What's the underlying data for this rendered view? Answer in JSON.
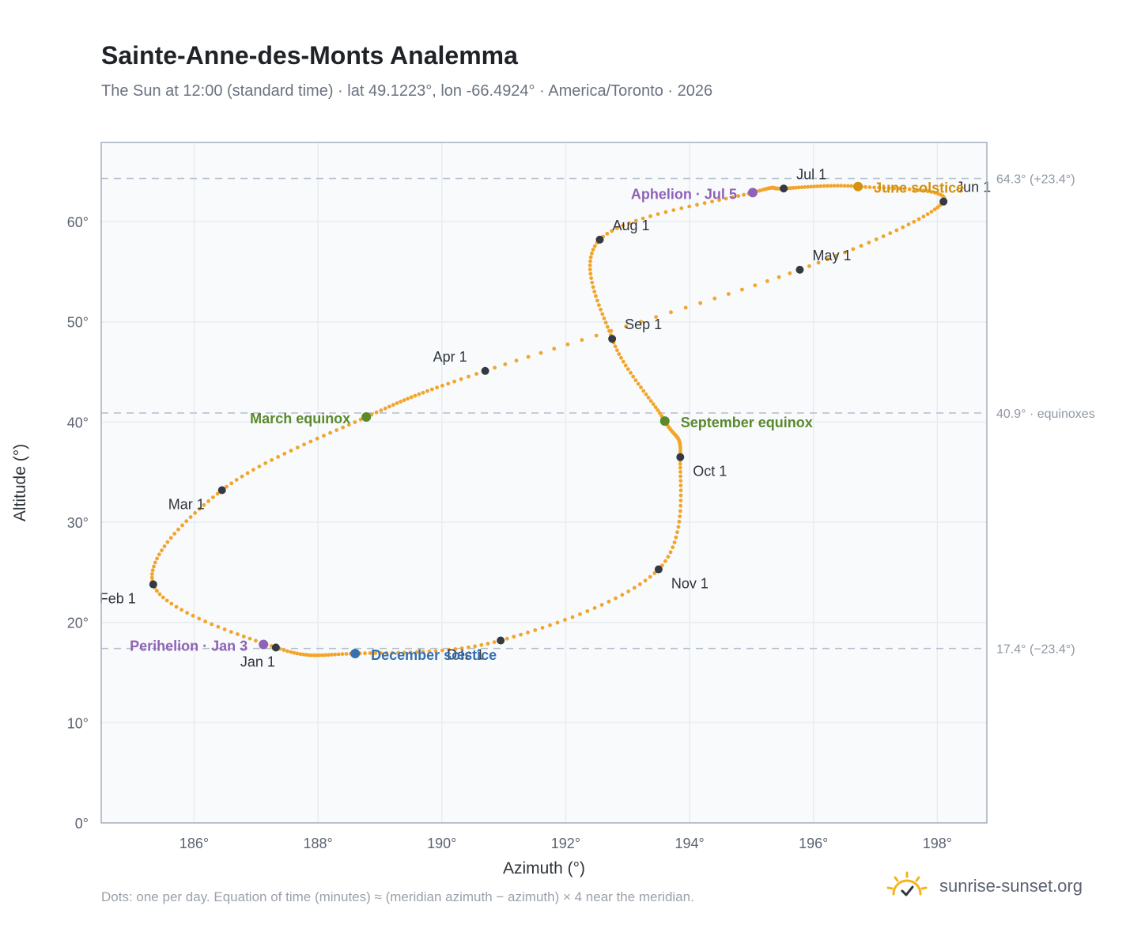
{
  "header": {
    "title": "Sainte-Anne-des-Monts Analemma",
    "subtitle": "The Sun at 12:00 (standard time) · lat 49.1223°, lon -66.4924° · America/Toronto · 2026"
  },
  "footer": {
    "note": "Dots: one per day. Equation of time (minutes) ≈ (meridian azimuth − azimuth) × 4 near the meridian.",
    "brand": "sunrise-sunset.org"
  },
  "colors": {
    "curve": "#f2a52a",
    "month_marker": "#343a42",
    "perihelion": "#8e63b5",
    "equinox": "#5a8a2c",
    "june_solstice": "#d4920e",
    "december_solstice": "#3470b2",
    "grid": "#e8ecf1",
    "plot_bg": "#f8fafc",
    "frame": "#a5b0bf",
    "reference_line": "#b7c2cf"
  },
  "chart_data": {
    "type": "scatter",
    "xlabel": "Azimuth (°)",
    "ylabel": "Altitude (°)",
    "xlim": [
      184.5,
      198.8
    ],
    "ylim": [
      0,
      67.9
    ],
    "xticks": [
      186,
      188,
      190,
      192,
      194,
      196,
      198
    ],
    "yticks": [
      0,
      10,
      20,
      30,
      40,
      50,
      60
    ],
    "tick_suffix": "°",
    "grid": true,
    "reference_lines": [
      {
        "y": 64.3,
        "label": "64.3° (+23.4°)"
      },
      {
        "y": 40.9,
        "label": "40.9° · equinoxes"
      },
      {
        "y": 17.4,
        "label": "17.4° (−23.4°)"
      }
    ],
    "path_knots": [
      {
        "az": 187.32,
        "alt": 17.5
      },
      {
        "az": 185.34,
        "alt": 23.8
      },
      {
        "az": 186.45,
        "alt": 33.2
      },
      {
        "az": 188.78,
        "alt": 40.5
      },
      {
        "az": 190.7,
        "alt": 45.1
      },
      {
        "az": 195.78,
        "alt": 55.2
      },
      {
        "az": 198.1,
        "alt": 62.0
      },
      {
        "az": 196.72,
        "alt": 63.5
      },
      {
        "az": 195.52,
        "alt": 63.3
      },
      {
        "az": 195.02,
        "alt": 62.9
      },
      {
        "az": 192.55,
        "alt": 58.2
      },
      {
        "az": 192.75,
        "alt": 48.3
      },
      {
        "az": 193.6,
        "alt": 40.1
      },
      {
        "az": 193.85,
        "alt": 36.5
      },
      {
        "az": 193.5,
        "alt": 25.3
      },
      {
        "az": 190.95,
        "alt": 18.2
      },
      {
        "az": 188.6,
        "alt": 16.9
      },
      {
        "az": 187.32,
        "alt": 17.5
      }
    ],
    "month_markers": [
      {
        "label": "Jan 1",
        "az": 187.32,
        "alt": 17.5,
        "pos": "below"
      },
      {
        "label": "Feb 1",
        "az": 185.34,
        "alt": 23.8,
        "pos": "below-left"
      },
      {
        "label": "Mar 1",
        "az": 186.45,
        "alt": 33.2,
        "pos": "below-left"
      },
      {
        "label": "Apr 1",
        "az": 190.7,
        "alt": 45.1,
        "pos": "above-left"
      },
      {
        "label": "May 1",
        "az": 195.78,
        "alt": 55.2,
        "pos": "above-right"
      },
      {
        "label": "Jun 1",
        "az": 198.1,
        "alt": 62.0,
        "pos": "above-right"
      },
      {
        "label": "Jul 1",
        "az": 195.52,
        "alt": 63.3,
        "pos": "above-right"
      },
      {
        "label": "Aug 1",
        "az": 192.55,
        "alt": 58.2,
        "pos": "above-right"
      },
      {
        "label": "Sep 1",
        "az": 192.75,
        "alt": 48.3,
        "pos": "above-right"
      },
      {
        "label": "Oct 1",
        "az": 193.85,
        "alt": 36.5,
        "pos": "below-right"
      },
      {
        "label": "Nov 1",
        "az": 193.5,
        "alt": 25.3,
        "pos": "below-right"
      },
      {
        "label": "Dec 1",
        "az": 190.95,
        "alt": 18.2,
        "pos": "below-left"
      }
    ],
    "events": [
      {
        "label": "Perihelion · Jan 3",
        "az": 187.12,
        "alt": 17.8,
        "side": "left",
        "kind": "perihelion"
      },
      {
        "label": "March equinox",
        "az": 188.78,
        "alt": 40.5,
        "side": "left",
        "kind": "equinox"
      },
      {
        "label": "June solstice",
        "az": 196.72,
        "alt": 63.5,
        "side": "right",
        "kind": "june_solstice"
      },
      {
        "label": "Aphelion · Jul 5",
        "az": 195.02,
        "alt": 62.9,
        "side": "left",
        "kind": "perihelion"
      },
      {
        "label": "September equinox",
        "az": 193.6,
        "alt": 40.1,
        "side": "right",
        "kind": "equinox"
      },
      {
        "label": "December solstice",
        "az": 188.6,
        "alt": 16.9,
        "side": "right",
        "kind": "december_solstice"
      }
    ]
  }
}
